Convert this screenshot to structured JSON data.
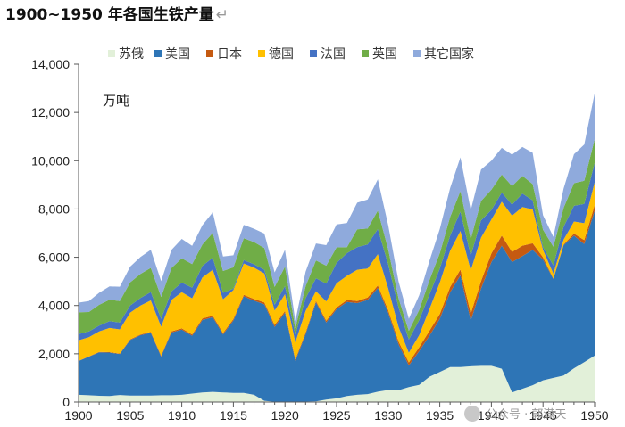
{
  "title": "1900~1950 年各国生铁产量",
  "return_glyph": "↵",
  "watermark": "公众号 · 郭滿天",
  "chart_data": {
    "type": "area",
    "stacked": true,
    "title": "1900~1950 年各国生铁产量",
    "unit_label": "万吨",
    "xlabel": "",
    "ylabel": "",
    "xlim": [
      1900,
      1950
    ],
    "ylim": [
      0,
      14000
    ],
    "x_ticks": [
      1900,
      1905,
      1910,
      1915,
      1920,
      1925,
      1930,
      1935,
      1940,
      1945,
      1950
    ],
    "y_ticks": [
      0,
      2000,
      4000,
      6000,
      8000,
      10000,
      12000,
      14000
    ],
    "y_tick_labels": [
      "0",
      "2,000",
      "4,000",
      "6,000",
      "8,000",
      "10,000",
      "12,000",
      "14,000"
    ],
    "grid": false,
    "legend_position": "top",
    "x": [
      1900,
      1901,
      1902,
      1903,
      1904,
      1905,
      1906,
      1907,
      1908,
      1909,
      1910,
      1911,
      1912,
      1913,
      1914,
      1915,
      1916,
      1917,
      1918,
      1919,
      1920,
      1921,
      1922,
      1923,
      1924,
      1925,
      1926,
      1927,
      1928,
      1929,
      1930,
      1931,
      1932,
      1933,
      1934,
      1935,
      1936,
      1937,
      1938,
      1939,
      1940,
      1941,
      1942,
      1943,
      1944,
      1945,
      1946,
      1947,
      1948,
      1949,
      1950
    ],
    "series": [
      {
        "name": "苏俄",
        "color": "#e2f0d9",
        "values": [
          300,
          280,
          260,
          250,
          290,
          270,
          270,
          270,
          280,
          280,
          300,
          350,
          400,
          420,
          400,
          380,
          380,
          300,
          50,
          10,
          10,
          10,
          20,
          30,
          100,
          150,
          250,
          300,
          330,
          430,
          500,
          490,
          620,
          710,
          1050,
          1250,
          1450,
          1450,
          1480,
          1500,
          1500,
          1380,
          400,
          550,
          700,
          900,
          1000,
          1100,
          1400,
          1650,
          1920
        ]
      },
      {
        "name": "美国",
        "color": "#2e75b6",
        "values": [
          1400,
          1600,
          1800,
          1800,
          1700,
          2300,
          2500,
          2600,
          1600,
          2600,
          2700,
          2400,
          3000,
          3100,
          2400,
          3000,
          4000,
          3900,
          4000,
          3100,
          3700,
          1700,
          2800,
          4100,
          3200,
          3700,
          3900,
          3800,
          3900,
          4300,
          3200,
          1900,
          900,
          1400,
          1700,
          2200,
          3100,
          3800,
          1900,
          3200,
          4300,
          5100,
          5400,
          5500,
          5600,
          5000,
          4100,
          5400,
          5500,
          4900,
          6000
        ]
      },
      {
        "name": "日本",
        "color": "#c55a11",
        "values": [
          10,
          10,
          20,
          20,
          20,
          30,
          30,
          40,
          40,
          50,
          50,
          50,
          60,
          60,
          60,
          60,
          60,
          70,
          80,
          80,
          60,
          60,
          60,
          60,
          70,
          70,
          80,
          80,
          100,
          100,
          110,
          120,
          120,
          160,
          200,
          200,
          220,
          240,
          280,
          310,
          360,
          420,
          420,
          430,
          280,
          100,
          20,
          30,
          80,
          160,
          230
        ]
      },
      {
        "name": "德国",
        "color": "#ffc000",
        "values": [
          850,
          800,
          850,
          1000,
          1000,
          1100,
          1200,
          1300,
          1200,
          1300,
          1500,
          1500,
          1700,
          1900,
          1400,
          1200,
          1300,
          1300,
          1200,
          600,
          700,
          700,
          900,
          400,
          800,
          1000,
          1000,
          1300,
          1200,
          1300,
          900,
          600,
          400,
          500,
          900,
          1300,
          1500,
          1600,
          1800,
          1800,
          1400,
          1400,
          1500,
          1600,
          1400,
          300,
          200,
          200,
          500,
          700,
          950
        ]
      },
      {
        "name": "法国",
        "color": "#4472c4",
        "values": [
          260,
          240,
          240,
          280,
          290,
          300,
          310,
          350,
          330,
          350,
          400,
          440,
          480,
          500,
          270,
          60,
          140,
          140,
          150,
          240,
          340,
          330,
          520,
          540,
          740,
          850,
          940,
          940,
          1000,
          1040,
          1000,
          810,
          550,
          630,
          600,
          580,
          630,
          800,
          600,
          720,
          400,
          380,
          460,
          560,
          380,
          120,
          340,
          540,
          650,
          800,
          800
        ]
      },
      {
        "name": "英国",
        "color": "#70ad47",
        "values": [
          900,
          800,
          860,
          890,
          880,
          960,
          1000,
          1000,
          910,
          970,
          1010,
          980,
          890,
          1030,
          900,
          880,
          910,
          920,
          900,
          740,
          800,
          260,
          500,
          740,
          740,
          640,
          250,
          740,
          660,
          760,
          620,
          380,
          360,
          420,
          600,
          640,
          770,
          850,
          690,
          800,
          840,
          750,
          770,
          730,
          670,
          720,
          780,
          780,
          940,
          960,
          980
        ]
      },
      {
        "name": "其它国家",
        "color": "#8faadc",
        "values": [
          400,
          450,
          500,
          550,
          600,
          650,
          700,
          750,
          650,
          750,
          800,
          750,
          800,
          850,
          600,
          500,
          550,
          550,
          600,
          600,
          700,
          300,
          600,
          700,
          850,
          950,
          1000,
          1100,
          1200,
          1300,
          1000,
          700,
          500,
          600,
          800,
          1000,
          1200,
          1400,
          1200,
          1300,
          1200,
          1100,
          1300,
          1200,
          1300,
          600,
          400,
          800,
          1200,
          1500,
          1900
        ]
      }
    ]
  }
}
